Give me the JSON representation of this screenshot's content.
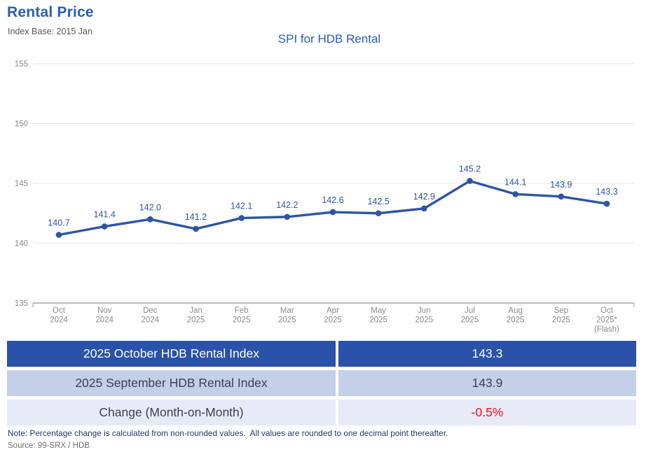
{
  "page": {
    "title": "Rental Price",
    "subtitle": "Index Base: 2015 Jan",
    "note": "Note: Percentage change is calculated from non-rounded values.  All values are rounded to one decimal point thereafter.",
    "source": "Source: 99-SRX / HDB"
  },
  "chart_data": {
    "type": "line",
    "title": "SPI for HDB Rental",
    "categories": [
      [
        "Oct",
        "2024"
      ],
      [
        "Nov",
        "2024"
      ],
      [
        "Dec",
        "2024"
      ],
      [
        "Jan",
        "2025"
      ],
      [
        "Feb",
        "2025"
      ],
      [
        "Mar",
        "2025"
      ],
      [
        "Apr",
        "2025"
      ],
      [
        "May",
        "2025"
      ],
      [
        "Jun",
        "2025"
      ],
      [
        "Jul",
        "2025"
      ],
      [
        "Aug",
        "2025"
      ],
      [
        "Sep",
        "2025"
      ],
      [
        "Oct",
        "2025*",
        "(Flash)"
      ]
    ],
    "values": [
      140.7,
      141.4,
      142.0,
      141.2,
      142.1,
      142.2,
      142.6,
      142.5,
      142.9,
      145.2,
      144.1,
      143.9,
      143.3
    ],
    "point_labels": [
      "140.7",
      "141.4",
      "142.0",
      "141.2",
      "142.1",
      "142.2",
      "142.6",
      "142.5",
      "142.9",
      "145.2",
      "144.1",
      "143.9",
      "143.3"
    ],
    "ylim": [
      135,
      155
    ],
    "yticks": [
      135,
      140,
      145,
      150,
      155
    ],
    "xlabel": "",
    "ylabel": "",
    "grid": true,
    "legend": "none",
    "line_color": "#2e55a4"
  },
  "summary_table": {
    "rows": [
      {
        "label": "2025 October HDB Rental Index",
        "value": "143.3"
      },
      {
        "label": "2025 September HDB Rental Index",
        "value": "143.9"
      },
      {
        "label": "Change (Month-on-Month)",
        "value": "-0.5%",
        "value_color": "#ff0d0d"
      }
    ]
  },
  "colors": {
    "accent_blue": "#2a5db4",
    "line_blue": "#2e55a4",
    "table_row1_bg": "#2a52a8",
    "table_row2_bg": "#c4cfe8",
    "table_row3_bg": "#e7ebf7",
    "negative_red": "#ff0d0d",
    "axis_text": "#8a8a8a",
    "gridline": "#e4e4e4",
    "axis_line": "#a9a9a9"
  }
}
